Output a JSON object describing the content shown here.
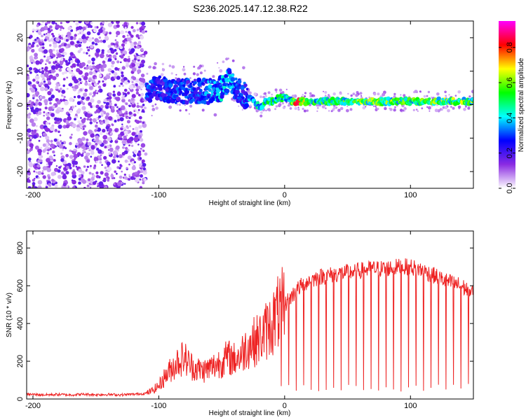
{
  "title": "S236.2025.147.12.38.R22",
  "chart_data": [
    {
      "type": "heatmap",
      "xlabel": "Height of straight line (km)",
      "ylabel": "Frequency (Hz)",
      "xlim": [
        -205,
        150
      ],
      "ylim": [
        -25,
        25
      ],
      "xticks": [
        -200,
        -100,
        0,
        100
      ],
      "yticks": [
        -20,
        -10,
        0,
        10,
        20
      ],
      "colorbar": {
        "label": "Normalized spectral amplitude",
        "ticks": [
          0.0,
          0.2,
          0.4,
          0.6,
          0.8
        ],
        "range": [
          0.0,
          0.95
        ],
        "colors": [
          "#ffffff",
          "#8a2be2",
          "#0000ff",
          "#00ffff",
          "#00ff00",
          "#ffff00",
          "#ff0000",
          "#ff00ff"
        ]
      },
      "ridge": {
        "x": [
          -110,
          -100,
          -90,
          -80,
          -70,
          -60,
          -50,
          -45,
          -40,
          -35,
          -30,
          -25,
          -20,
          -15,
          -10,
          -5,
          0,
          5,
          10,
          20,
          40,
          60,
          80,
          100,
          120,
          150
        ],
        "frequency": [
          4,
          5,
          4,
          4,
          4,
          4,
          5,
          7,
          5,
          4,
          2,
          1,
          -1,
          1,
          1,
          2,
          2,
          1,
          1,
          1,
          1,
          1,
          1,
          1,
          1,
          1
        ],
        "amplitude": [
          0.3,
          0.3,
          0.3,
          0.3,
          0.3,
          0.35,
          0.4,
          0.4,
          0.35,
          0.3,
          0.35,
          0.4,
          0.45,
          0.5,
          0.5,
          0.5,
          0.5,
          0.55,
          0.85,
          0.5,
          0.55,
          0.6,
          0.6,
          0.55,
          0.6,
          0.6
        ]
      },
      "grid": false
    },
    {
      "type": "line",
      "xlabel": "Height of straight line (km)",
      "ylabel": "SNR (10 * v/v)",
      "xlim": [
        -205,
        150
      ],
      "ylim": [
        0,
        890
      ],
      "xticks": [
        -200,
        -100,
        0,
        100
      ],
      "yticks": [
        0,
        200,
        400,
        600,
        800
      ],
      "color": "#ee2222",
      "series": [
        {
          "x": [
            -205,
            -190,
            -180,
            -170,
            -160,
            -150,
            -140,
            -130,
            -120,
            -110,
            -105,
            -100,
            -95,
            -90,
            -85,
            -80,
            -75,
            -70,
            -65,
            -60,
            -55,
            -50,
            -45,
            -40,
            -35,
            -30,
            -25,
            -20,
            -15,
            -10,
            -5,
            0,
            5,
            10,
            15,
            20,
            25,
            30,
            40,
            50,
            60,
            70,
            80,
            90,
            100,
            110,
            120,
            130,
            140,
            150
          ],
          "values": [
            25,
            22,
            24,
            22,
            25,
            23,
            24,
            22,
            25,
            30,
            45,
            70,
            120,
            160,
            200,
            220,
            180,
            160,
            150,
            160,
            180,
            200,
            220,
            210,
            230,
            280,
            300,
            320,
            360,
            400,
            460,
            500,
            540,
            580,
            610,
            630,
            640,
            650,
            660,
            670,
            680,
            690,
            690,
            700,
            700,
            680,
            650,
            620,
            600,
            560
          ]
        }
      ],
      "grid": false
    }
  ]
}
